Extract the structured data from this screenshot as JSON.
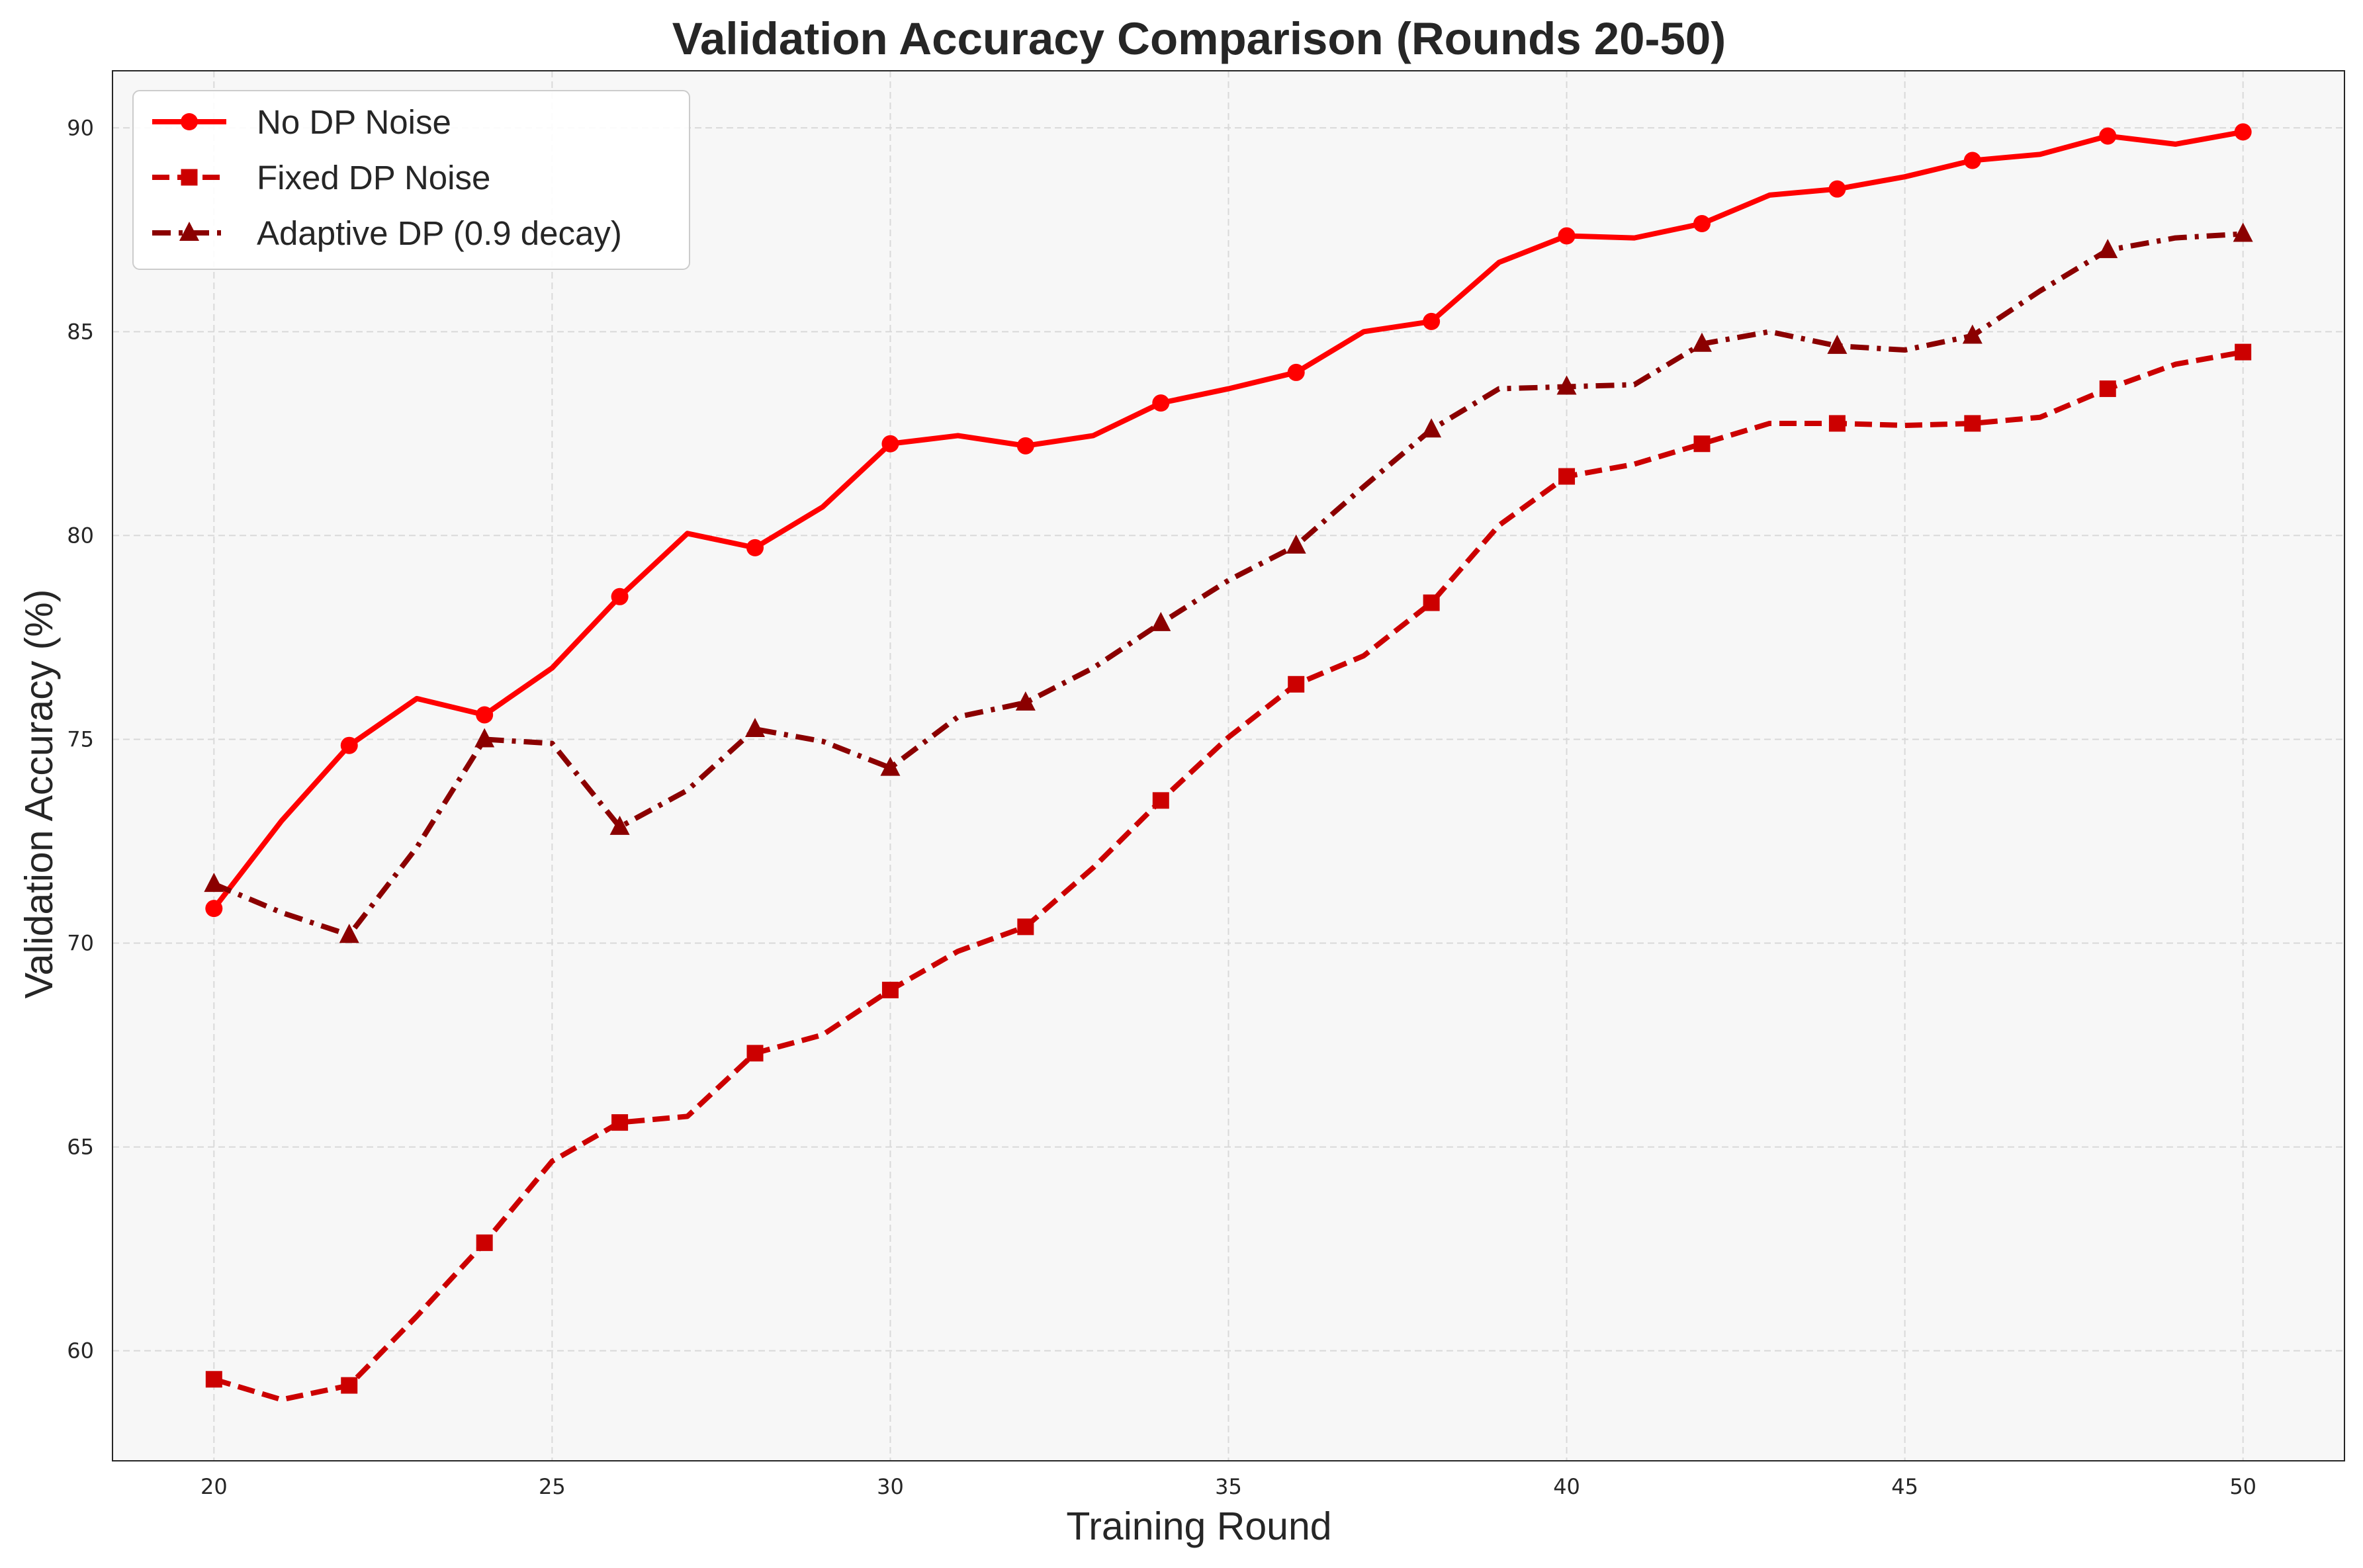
{
  "colors": {
    "background": "#ffffff",
    "plot_background": "#f7f7f7",
    "grid": "#d9d9d9",
    "frame": "#262626",
    "no_dp": "#ff0000",
    "fixed_dp": "#cc0000",
    "adaptive_dp": "#8b0000"
  },
  "chart_data": {
    "type": "line",
    "title": "Validation Accuracy Comparison (Rounds 20-50)",
    "xlabel": "Training Round",
    "ylabel": "Validation Accuracy (%)",
    "xlim": [
      18.5,
      51.5
    ],
    "ylim": [
      57.3,
      91.4
    ],
    "xticks": [
      20,
      25,
      30,
      35,
      40,
      45,
      50
    ],
    "yticks": [
      60,
      65,
      70,
      75,
      80,
      85,
      90
    ],
    "grid": true,
    "legend_position": "top-left",
    "x": [
      20,
      21,
      22,
      23,
      24,
      25,
      26,
      27,
      28,
      29,
      30,
      31,
      32,
      33,
      34,
      35,
      36,
      37,
      38,
      39,
      40,
      41,
      42,
      43,
      44,
      45,
      46,
      47,
      48,
      49,
      50
    ],
    "series": [
      {
        "name": "No DP Noise",
        "color": "#ff0000",
        "line_style": "solid",
        "marker": "circle",
        "marker_every": 2,
        "values": [
          70.85,
          73.0,
          74.85,
          76.0,
          75.6,
          76.75,
          78.5,
          80.05,
          79.7,
          80.7,
          82.25,
          82.45,
          82.2,
          82.45,
          83.25,
          83.6,
          84.0,
          85.0,
          85.25,
          86.7,
          87.35,
          87.3,
          87.65,
          88.35,
          88.5,
          88.8,
          89.2,
          89.35,
          89.8,
          89.6,
          89.9
        ]
      },
      {
        "name": "Fixed DP Noise",
        "color": "#cc0000",
        "line_style": "dashed",
        "marker": "square",
        "marker_every": 2,
        "values": [
          59.3,
          58.8,
          59.15,
          60.85,
          62.65,
          64.65,
          65.6,
          65.75,
          67.3,
          67.75,
          68.85,
          69.8,
          70.4,
          71.85,
          73.5,
          75.05,
          76.35,
          77.05,
          78.35,
          80.25,
          81.45,
          81.75,
          82.25,
          82.75,
          82.75,
          82.7,
          82.75,
          82.9,
          83.6,
          84.2,
          84.5
        ]
      },
      {
        "name": "Adaptive DP (0.9 decay)",
        "color": "#8b0000",
        "line_style": "dashdot",
        "marker": "triangle",
        "marker_every": 2,
        "values": [
          71.45,
          70.75,
          70.2,
          72.35,
          75.0,
          74.9,
          72.85,
          73.75,
          75.25,
          74.95,
          74.3,
          75.55,
          75.9,
          76.75,
          77.85,
          78.9,
          79.75,
          81.2,
          82.6,
          83.6,
          83.65,
          83.7,
          84.7,
          85.0,
          84.65,
          84.55,
          84.9,
          86.0,
          87.0,
          87.3,
          87.4
        ]
      }
    ]
  }
}
